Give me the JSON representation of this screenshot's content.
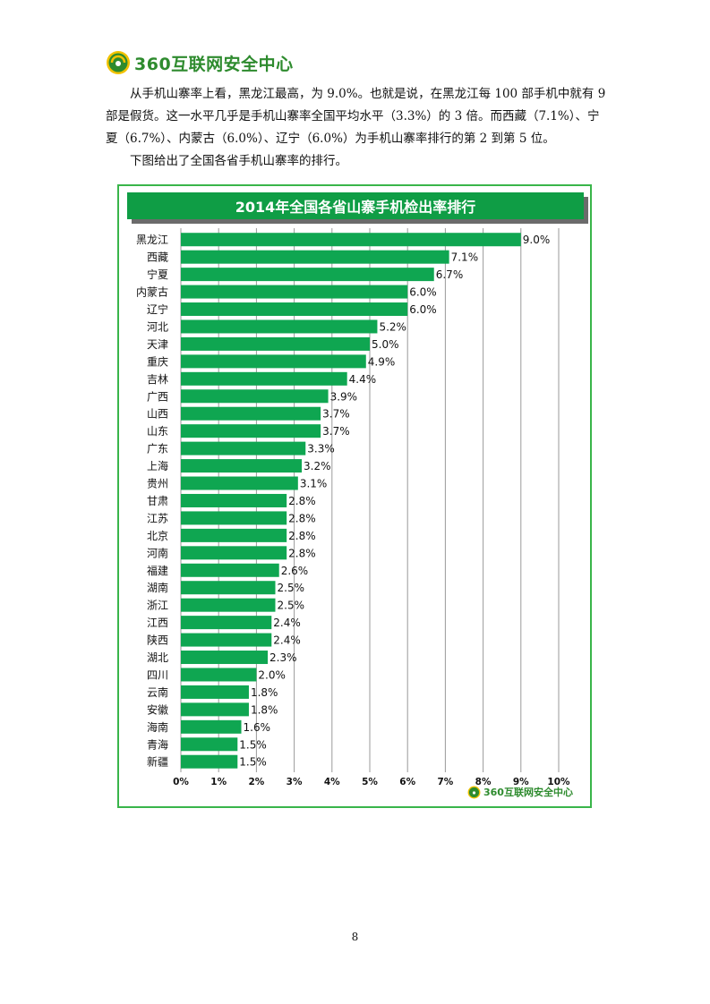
{
  "header": {
    "logo_text": "360互联网安全中心"
  },
  "body": {
    "paragraph_1": "从手机山寨率上看，黑龙江最高，为 9.0%。也就是说，在黑龙江每 100 部手机中就有 9 部是假货。这一水平几乎是手机山寨率全国平均水平（3.3%）的 3 倍。而西藏（7.1%）、宁夏（6.7%）、内蒙古（6.0%）、辽宁（6.0%）为手机山寨率排行的第 2 到第 5 位。",
    "paragraph_2": "下图给出了全国各省手机山寨率的排行。"
  },
  "chart_data": {
    "type": "bar",
    "orientation": "horizontal",
    "title": "2014年全国各省山寨手机检出率排行",
    "categories": [
      "黑龙江",
      "西藏",
      "宁夏",
      "内蒙古",
      "辽宁",
      "河北",
      "天津",
      "重庆",
      "吉林",
      "广西",
      "山西",
      "山东",
      "广东",
      "上海",
      "贵州",
      "甘肃",
      "江苏",
      "北京",
      "河南",
      "福建",
      "湖南",
      "浙江",
      "江西",
      "陕西",
      "湖北",
      "四川",
      "云南",
      "安徽",
      "海南",
      "青海",
      "新疆"
    ],
    "values": [
      9.0,
      7.1,
      6.7,
      6.0,
      6.0,
      5.2,
      5.0,
      4.9,
      4.4,
      3.9,
      3.7,
      3.7,
      3.3,
      3.2,
      3.1,
      2.8,
      2.8,
      2.8,
      2.8,
      2.6,
      2.5,
      2.5,
      2.4,
      2.4,
      2.3,
      2.0,
      1.8,
      1.8,
      1.6,
      1.5,
      1.5
    ],
    "value_labels": [
      "9.0%",
      "7.1%",
      "6.7%",
      "6.0%",
      "6.0%",
      "5.2%",
      "5.0%",
      "4.9%",
      "4.4%",
      "3.9%",
      "3.7%",
      "3.7%",
      "3.3%",
      "3.2%",
      "3.1%",
      "2.8%",
      "2.8%",
      "2.8%",
      "2.8%",
      "2.6%",
      "2.5%",
      "2.5%",
      "2.4%",
      "2.4%",
      "2.3%",
      "2.0%",
      "1.8%",
      "1.8%",
      "1.6%",
      "1.5%",
      "1.5%"
    ],
    "xlim": [
      0,
      10
    ],
    "xticks": [
      "0%",
      "1%",
      "2%",
      "3%",
      "4%",
      "5%",
      "6%",
      "7%",
      "8%",
      "9%",
      "10%"
    ],
    "grid": "vertical",
    "bar_color": "#0fa651",
    "watermark": "360互联网安全中心"
  },
  "footer": {
    "page_number": "8"
  }
}
